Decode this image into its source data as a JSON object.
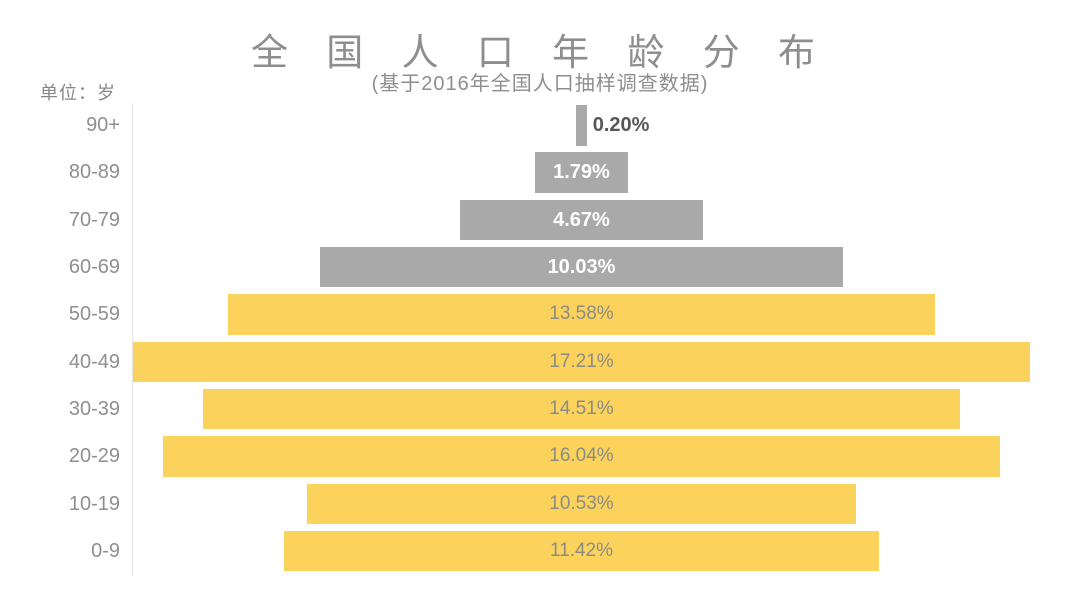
{
  "header": {
    "title": "全 国 人 口 年 龄 分 布",
    "subtitle": "(基于2016年全国人口抽样调查数据)",
    "unit_label": "单位：岁"
  },
  "chart_data": {
    "type": "bar",
    "orientation": "horizontal-centered-funnel",
    "title": "全国人口年龄分布",
    "subtitle": "基于2016年全国人口抽样调查数据",
    "unit": "岁",
    "categories": [
      "90+",
      "80-89",
      "70-79",
      "60-69",
      "50-59",
      "40-49",
      "30-39",
      "20-29",
      "10-19",
      "0-9"
    ],
    "values": [
      0.2,
      1.79,
      4.67,
      10.03,
      13.58,
      17.21,
      14.51,
      16.04,
      10.53,
      11.42
    ],
    "value_labels": [
      "0.20%",
      "1.79%",
      "4.67%",
      "10.03%",
      "13.58%",
      "17.21%",
      "14.51%",
      "16.04%",
      "10.53%",
      "11.42%"
    ],
    "color_groups": [
      "senior",
      "senior",
      "senior",
      "senior",
      "younger",
      "younger",
      "younger",
      "younger",
      "younger",
      "younger"
    ],
    "bar_colors": {
      "senior": "#a9a9a9",
      "younger": "#fbd35c"
    },
    "value_label_position": [
      "outside-right",
      "inside",
      "inside",
      "inside",
      "inside",
      "inside",
      "inside",
      "inside",
      "inside",
      "inside"
    ],
    "xlim": [
      0,
      18.2
    ],
    "grid": false,
    "legend": false,
    "bars_centered": true
  },
  "colors": {
    "background": "#ffffff",
    "title_text": "#8e8e8e",
    "category_text": "#8f8f8f",
    "axis_line": "#e4e4e4",
    "value_text_on_yellow": "#8b8b83",
    "value_text_on_gray": "#ffffff",
    "value_text_outside": "#575757"
  }
}
